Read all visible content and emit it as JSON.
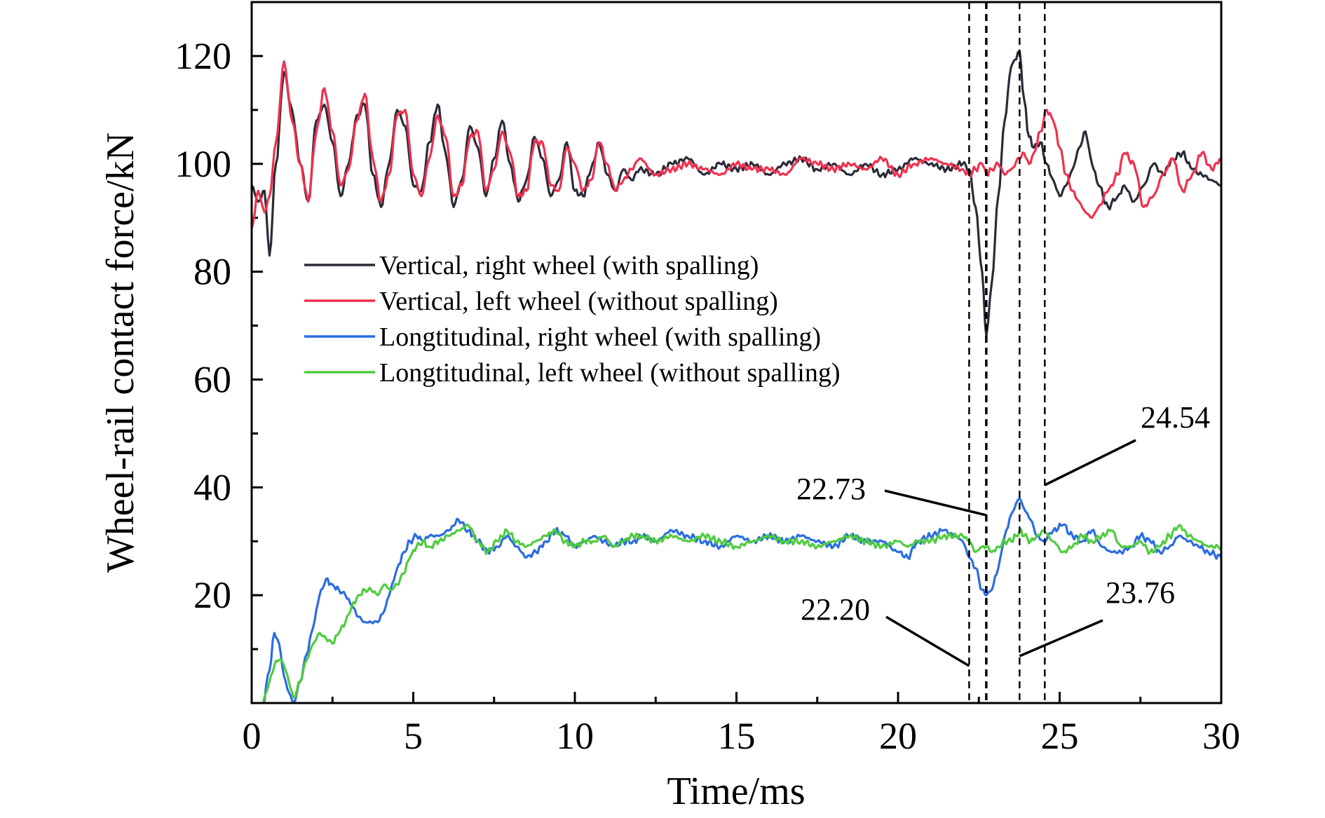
{
  "chart_data": {
    "type": "line",
    "title": "",
    "xlabel": "Time/ms",
    "ylabel": "Wheel-rail contact force/kN",
    "xlim": [
      0,
      30
    ],
    "ylim": [
      0,
      130
    ],
    "x_ticks": [
      0,
      5,
      10,
      15,
      20,
      25,
      30
    ],
    "y_ticks": [
      20,
      40,
      60,
      80,
      100,
      120
    ],
    "grid": false,
    "legend_position": "center-left",
    "series": [
      {
        "name": "Vertical, right wheel (with spalling)",
        "color": "#2b2b38",
        "x": [
          0.0,
          0.2,
          0.4,
          0.55,
          0.75,
          1.0,
          1.25,
          1.5,
          1.75,
          2.0,
          2.25,
          2.5,
          2.75,
          3.0,
          3.25,
          3.5,
          3.75,
          4.0,
          4.25,
          4.5,
          4.75,
          5.0,
          5.25,
          5.5,
          5.75,
          6.0,
          6.25,
          6.5,
          6.75,
          7.0,
          7.25,
          7.5,
          7.75,
          8.0,
          8.25,
          8.5,
          8.75,
          9.0,
          9.25,
          9.5,
          9.75,
          10.0,
          10.25,
          10.5,
          10.75,
          11.0,
          11.25,
          11.5,
          11.75,
          12.0,
          12.5,
          13.0,
          13.5,
          14.0,
          14.5,
          15.0,
          15.5,
          16.0,
          16.5,
          17.0,
          17.5,
          18.0,
          18.5,
          19.0,
          19.5,
          20.0,
          20.5,
          21.0,
          21.5,
          22.0,
          22.2,
          22.4,
          22.6,
          22.73,
          22.9,
          23.1,
          23.3,
          23.5,
          23.76,
          23.9,
          24.05,
          24.2,
          24.4,
          24.6,
          24.8,
          25.0,
          25.2,
          25.4,
          25.6,
          25.8,
          26.0,
          26.2,
          26.5,
          26.8,
          27.0,
          27.3,
          27.6,
          27.9,
          28.2,
          28.5,
          28.8,
          29.1,
          29.4,
          29.7,
          30.0
        ],
        "values": [
          96,
          93,
          95,
          83,
          100,
          117,
          110,
          100,
          93,
          108,
          111,
          104,
          94,
          100,
          109,
          111,
          98,
          92,
          100,
          110,
          107,
          96,
          95,
          104,
          111,
          102,
          92,
          97,
          107,
          103,
          94,
          101,
          108,
          100,
          93,
          97,
          105,
          101,
          94,
          97,
          104,
          95,
          94,
          99,
          104,
          98,
          95,
          99,
          97,
          99,
          98,
          100,
          101,
          98,
          100,
          99,
          100,
          98,
          100,
          101,
          99,
          100,
          98,
          100,
          98,
          99,
          101,
          100,
          99,
          100,
          99,
          92,
          80,
          68,
          78,
          94,
          108,
          118,
          121,
          112,
          105,
          103,
          104,
          100,
          97,
          94,
          96,
          99,
          103,
          106,
          100,
          96,
          92,
          94,
          96,
          93,
          96,
          100,
          98,
          101,
          102,
          99,
          98,
          97,
          96
        ]
      },
      {
        "name": "Vertical, left wheel (without spalling)",
        "color": "#f0304e",
        "x": [
          0.0,
          0.2,
          0.4,
          0.55,
          0.75,
          1.0,
          1.25,
          1.5,
          1.75,
          2.0,
          2.25,
          2.5,
          2.75,
          3.0,
          3.25,
          3.5,
          3.75,
          4.0,
          4.25,
          4.5,
          4.75,
          5.0,
          5.25,
          5.5,
          5.75,
          6.0,
          6.25,
          6.5,
          6.75,
          7.0,
          7.25,
          7.5,
          7.75,
          8.0,
          8.25,
          8.5,
          8.75,
          9.0,
          9.25,
          9.5,
          9.75,
          10.0,
          10.25,
          10.5,
          10.75,
          11.0,
          11.25,
          11.5,
          11.75,
          12.0,
          12.5,
          13.0,
          13.5,
          14.0,
          14.5,
          15.0,
          15.5,
          16.0,
          16.5,
          17.0,
          17.5,
          18.0,
          18.5,
          19.0,
          19.5,
          20.0,
          20.5,
          21.0,
          21.5,
          22.0,
          22.2,
          22.4,
          22.6,
          22.73,
          22.9,
          23.1,
          23.3,
          23.5,
          23.76,
          23.9,
          24.05,
          24.2,
          24.4,
          24.6,
          24.8,
          25.0,
          25.2,
          25.4,
          25.6,
          25.8,
          26.0,
          26.2,
          26.5,
          26.8,
          27.0,
          27.3,
          27.6,
          27.9,
          28.2,
          28.5,
          28.8,
          29.1,
          29.4,
          29.7,
          30.0
        ],
        "values": [
          88,
          95,
          91,
          94,
          104,
          119,
          108,
          100,
          93,
          106,
          114,
          106,
          96,
          99,
          108,
          113,
          101,
          93,
          98,
          109,
          110,
          98,
          94,
          101,
          109,
          105,
          94,
          96,
          105,
          106,
          95,
          99,
          106,
          102,
          94,
          95,
          104,
          104,
          96,
          95,
          103,
          100,
          95,
          97,
          104,
          100,
          95,
          97,
          99,
          101,
          98,
          99,
          100,
          99,
          98,
          100,
          99,
          99,
          98,
          101,
          100,
          99,
          100,
          99,
          101,
          98,
          100,
          101,
          100,
          99,
          98,
          99,
          100,
          98,
          99,
          100,
          98,
          99,
          101,
          102,
          100,
          102,
          106,
          110,
          108,
          103,
          98,
          95,
          93,
          91,
          90,
          92,
          95,
          98,
          102,
          100,
          92,
          94,
          98,
          101,
          95,
          98,
          102,
          99,
          101
        ]
      },
      {
        "name": "Longtitudinal, right wheel (with spalling)",
        "color": "#2b6ce3",
        "x": [
          0.35,
          0.55,
          0.7,
          0.85,
          1.0,
          1.15,
          1.3,
          1.5,
          1.7,
          1.9,
          2.1,
          2.3,
          2.5,
          2.7,
          2.9,
          3.1,
          3.3,
          3.5,
          3.7,
          3.9,
          4.1,
          4.3,
          4.5,
          4.7,
          4.9,
          5.1,
          5.3,
          5.5,
          5.8,
          6.1,
          6.4,
          6.7,
          7.0,
          7.3,
          7.6,
          7.9,
          8.2,
          8.5,
          8.8,
          9.1,
          9.4,
          9.7,
          10.0,
          10.3,
          10.6,
          10.9,
          11.2,
          11.5,
          11.8,
          12.1,
          12.5,
          13.0,
          13.5,
          14.0,
          14.5,
          15.0,
          15.5,
          16.0,
          16.5,
          17.0,
          17.5,
          18.0,
          18.5,
          19.0,
          19.5,
          20.0,
          20.3,
          20.6,
          21.0,
          21.4,
          21.8,
          22.0,
          22.2,
          22.4,
          22.6,
          22.73,
          22.9,
          23.1,
          23.3,
          23.5,
          23.65,
          23.76,
          23.9,
          24.1,
          24.3,
          24.5,
          24.8,
          25.1,
          25.4,
          25.7,
          26.0,
          26.3,
          26.6,
          26.9,
          27.2,
          27.5,
          27.8,
          28.1,
          28.4,
          28.7,
          29.0,
          29.3,
          29.6,
          30.0
        ],
        "values": [
          0,
          6,
          13,
          11,
          5,
          2,
          0,
          4,
          9,
          14,
          20,
          23,
          22,
          21,
          20,
          18,
          16,
          15,
          15,
          15,
          17,
          21,
          25,
          28,
          30,
          31,
          30,
          31,
          31,
          32,
          34,
          32,
          30,
          28,
          29,
          31,
          29,
          27,
          28,
          30,
          32,
          31,
          29,
          30,
          31,
          30,
          29,
          30,
          30,
          31,
          30,
          32,
          31,
          30,
          29,
          31,
          30,
          31,
          30,
          31,
          30,
          29,
          31,
          30,
          30,
          28,
          27,
          30,
          31,
          32,
          31,
          30,
          27,
          25,
          21,
          20,
          21,
          25,
          31,
          35,
          37,
          38,
          36,
          34,
          31,
          30,
          32,
          33,
          31,
          30,
          32,
          29,
          28,
          28,
          29,
          31,
          30,
          28,
          29,
          31,
          30,
          29,
          28,
          27
        ]
      },
      {
        "name": "Longtitudinal, left wheel (without spalling)",
        "color": "#4fcc3e",
        "x": [
          0.35,
          0.55,
          0.7,
          0.85,
          1.0,
          1.15,
          1.3,
          1.5,
          1.7,
          1.9,
          2.1,
          2.3,
          2.5,
          2.7,
          2.9,
          3.1,
          3.3,
          3.5,
          3.7,
          3.9,
          4.1,
          4.3,
          4.5,
          4.7,
          4.9,
          5.1,
          5.3,
          5.5,
          5.8,
          6.1,
          6.4,
          6.7,
          7.0,
          7.3,
          7.6,
          7.9,
          8.2,
          8.5,
          8.8,
          9.1,
          9.4,
          9.7,
          10.0,
          10.3,
          10.6,
          10.9,
          11.2,
          11.5,
          11.8,
          12.1,
          12.5,
          13.0,
          13.5,
          14.0,
          14.5,
          15.0,
          15.5,
          16.0,
          16.5,
          17.0,
          17.5,
          18.0,
          18.5,
          19.0,
          19.5,
          20.0,
          20.3,
          20.6,
          21.0,
          21.4,
          21.8,
          22.0,
          22.2,
          22.4,
          22.6,
          22.73,
          22.9,
          23.1,
          23.3,
          23.5,
          23.65,
          23.76,
          23.9,
          24.1,
          24.3,
          24.5,
          24.8,
          25.1,
          25.4,
          25.7,
          26.0,
          26.3,
          26.6,
          26.9,
          27.2,
          27.5,
          27.8,
          28.1,
          28.4,
          28.7,
          29.0,
          29.3,
          29.6,
          30.0
        ],
        "values": [
          0,
          4,
          7,
          8,
          7,
          4,
          1,
          4,
          8,
          11,
          13,
          12,
          11,
          13,
          15,
          18,
          20,
          21,
          21,
          20,
          22,
          21,
          22,
          24,
          27,
          29,
          30,
          29,
          30,
          31,
          32,
          33,
          30,
          28,
          30,
          32,
          30,
          29,
          30,
          31,
          32,
          30,
          29,
          30,
          30,
          31,
          29,
          30,
          31,
          31,
          30,
          31,
          30,
          31,
          30,
          29,
          30,
          31,
          30,
          30,
          29,
          30,
          31,
          30,
          29,
          30,
          29,
          30,
          30,
          31,
          31,
          31,
          30,
          28,
          29,
          29,
          28,
          29,
          30,
          30,
          31,
          32,
          31,
          30,
          31,
          32,
          30,
          28,
          29,
          31,
          30,
          31,
          32,
          29,
          29,
          30,
          28,
          29,
          31,
          33,
          31,
          30,
          29,
          29
        ]
      }
    ],
    "vertical_markers": [
      22.2,
      22.73,
      23.76,
      24.54
    ],
    "annotations": [
      {
        "text": "22.73",
        "target_x": 22.73
      },
      {
        "text": "24.54",
        "target_x": 24.54
      },
      {
        "text": "22.20",
        "target_x": 22.2
      },
      {
        "text": "23.76",
        "target_x": 23.76
      }
    ]
  }
}
